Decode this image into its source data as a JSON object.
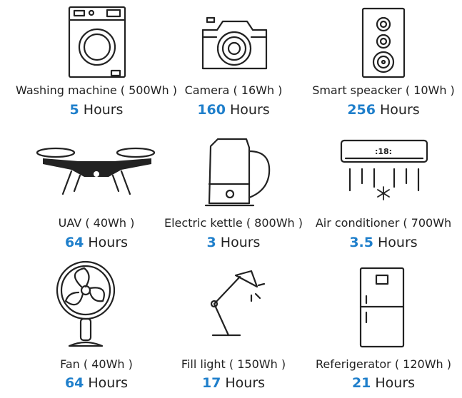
{
  "display": ":18:",
  "unit": "Hours",
  "items": [
    {
      "label": "Washing machine ( 500Wh )",
      "hours": 5
    },
    {
      "label": "Camera ( 16Wh )",
      "hours": 160
    },
    {
      "label": "Smart speacker ( 10Wh )",
      "hours": 256
    },
    {
      "label": "UAV ( 40Wh )",
      "hours": 64
    },
    {
      "label": "Electric kettle ( 800Wh )",
      "hours": 3
    },
    {
      "label": "Air conditioner ( 700Wh",
      "hours": 3.5
    },
    {
      "label": "Fan ( 40Wh )",
      "hours": 64
    },
    {
      "label": "Fill light ( 150Wh )",
      "hours": 17
    },
    {
      "label": "Referigerator ( 120Wh )",
      "hours": 21
    }
  ]
}
